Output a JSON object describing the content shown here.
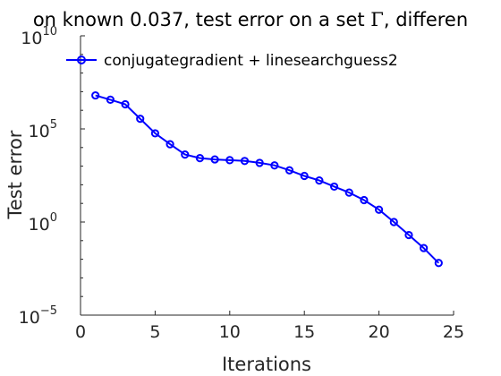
{
  "chart_data": {
    "type": "line",
    "title_parts": [
      "on known 0.037, test error on a set ",
      "Γ",
      ", differen"
    ],
    "xlabel": "Iterations",
    "ylabel": "Test error",
    "xlim": [
      0,
      25
    ],
    "ylim_exponents": [
      -5,
      10
    ],
    "yscale": "log",
    "xticks": [
      "0",
      "5",
      "10",
      "15",
      "20",
      "25"
    ],
    "yticks": [
      {
        "base": "10",
        "exp": "−5"
      },
      {
        "base": "10",
        "exp": "0"
      },
      {
        "base": "10",
        "exp": "5"
      },
      {
        "base": "10",
        "exp": "10"
      }
    ],
    "grid": false,
    "legend_position": "top-left",
    "series": [
      {
        "name": "conjugategradient + linesearchguess2",
        "color": "#0000ff",
        "marker": "circle",
        "x": [
          1,
          2,
          3,
          4,
          5,
          6,
          7,
          8,
          9,
          10,
          11,
          12,
          13,
          14,
          15,
          16,
          17,
          18,
          19,
          20,
          21,
          22,
          23,
          24
        ],
        "y": [
          6300000.0,
          3700000.0,
          2100000.0,
          350000.0,
          58000.0,
          15000.0,
          4200.0,
          2700.0,
          2300.0,
          2100.0,
          1900.0,
          1500.0,
          1100.0,
          600.0,
          300.0,
          170.0,
          80.0,
          38.0,
          15.0,
          4.6,
          1.0,
          0.2,
          0.04,
          0.0063
        ]
      }
    ]
  }
}
